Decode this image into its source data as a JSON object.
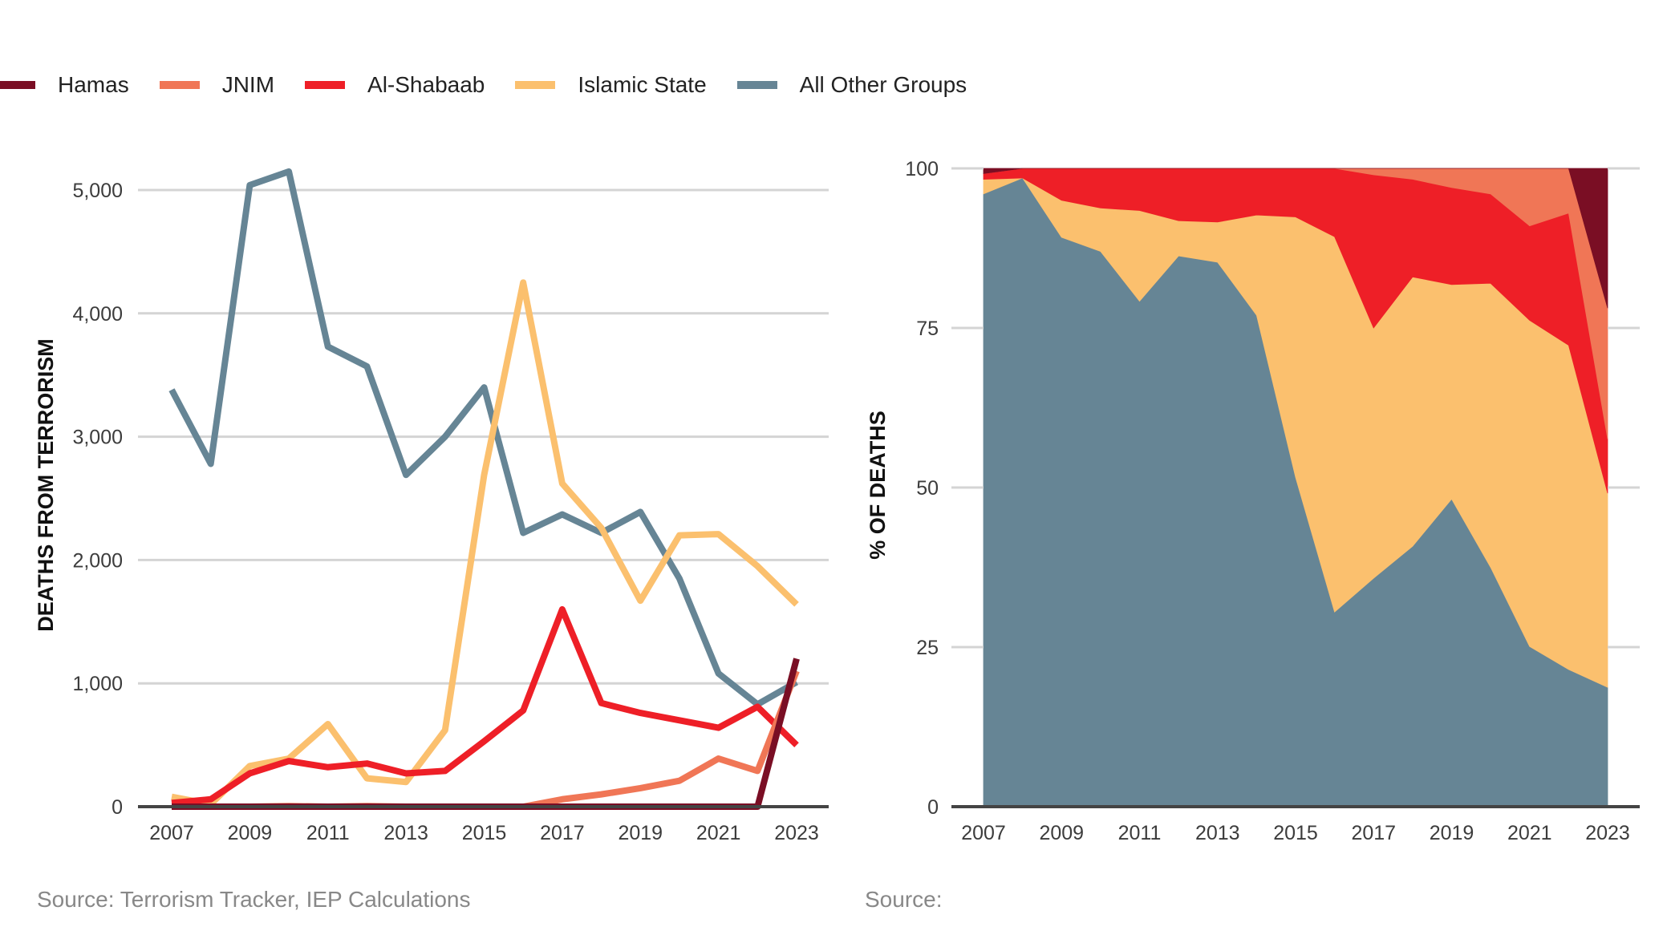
{
  "legend": [
    {
      "name": "Hamas",
      "color": "#7a0e24"
    },
    {
      "name": "JNIM",
      "color": "#f07656"
    },
    {
      "name": "Al-Shabaab",
      "color": "#ee1f27"
    },
    {
      "name": "Islamic State",
      "color": "#fbc06e"
    },
    {
      "name": "All Other Groups",
      "color": "#668595"
    }
  ],
  "chart_data": [
    {
      "type": "line",
      "title": "",
      "xlabel": "",
      "ylabel": "DEATHS FROM TERRORISM",
      "x": [
        2007,
        2008,
        2009,
        2010,
        2011,
        2012,
        2013,
        2014,
        2015,
        2016,
        2017,
        2018,
        2019,
        2020,
        2021,
        2022,
        2023
      ],
      "x_tick_labels": [
        "2007",
        "2009",
        "2011",
        "2013",
        "2015",
        "2017",
        "2019",
        "2021",
        "2023"
      ],
      "y_tick_labels": [
        "0",
        "1,000",
        "2,000",
        "3,000",
        "4,000",
        "5,000"
      ],
      "ylim": [
        0,
        5150
      ],
      "grid": true,
      "legend": "top-left",
      "series": [
        {
          "name": "All Other Groups",
          "color": "#668595",
          "values": [
            3380,
            2780,
            5040,
            5150,
            3730,
            3570,
            2690,
            3000,
            3400,
            2220,
            2370,
            2220,
            2390,
            1850,
            1080,
            830,
            1010
          ]
        },
        {
          "name": "Islamic State",
          "color": "#fbc06e",
          "values": [
            80,
            20,
            330,
            390,
            670,
            230,
            200,
            620,
            2690,
            4250,
            2620,
            2260,
            1670,
            2200,
            2210,
            1950,
            1640
          ]
        },
        {
          "name": "Al-Shabaab",
          "color": "#ee1f27",
          "values": [
            30,
            60,
            270,
            370,
            320,
            350,
            270,
            290,
            530,
            780,
            1600,
            840,
            760,
            700,
            640,
            810,
            500
          ]
        },
        {
          "name": "JNIM",
          "color": "#f07656",
          "values": [
            0,
            0,
            0,
            5,
            0,
            5,
            0,
            0,
            0,
            0,
            60,
            100,
            150,
            210,
            390,
            290,
            1100
          ]
        },
        {
          "name": "Hamas",
          "color": "#7a0e24",
          "values": [
            0,
            0,
            0,
            0,
            0,
            0,
            0,
            0,
            0,
            0,
            0,
            0,
            0,
            0,
            0,
            0,
            1200
          ]
        }
      ],
      "source": "Source: Terrorism Tracker, IEP Calculations"
    },
    {
      "type": "area",
      "stacked": true,
      "title": "",
      "xlabel": "",
      "ylabel": "% OF DEATHS",
      "x": [
        2007,
        2008,
        2009,
        2010,
        2011,
        2012,
        2013,
        2014,
        2015,
        2016,
        2017,
        2018,
        2019,
        2020,
        2021,
        2022,
        2023
      ],
      "x_tick_labels": [
        "2007",
        "2009",
        "2011",
        "2013",
        "2015",
        "2017",
        "2019",
        "2021",
        "2023"
      ],
      "y_tick_labels": [
        "0",
        "25",
        "50",
        "75",
        "100"
      ],
      "ylim": [
        0,
        100
      ],
      "grid": true,
      "series": [
        {
          "name": "All Other Groups",
          "color": "#668595",
          "values": [
            96,
            98.5,
            89.2,
            87,
            79.2,
            86.3,
            85.3,
            77,
            51.6,
            30.5,
            35.8,
            40.8,
            48.2,
            37.5,
            25.1,
            21.5,
            18.7
          ]
        },
        {
          "name": "Islamic State",
          "color": "#fbc06e",
          "values": [
            2.3,
            0,
            5.8,
            6.8,
            14.2,
            5.5,
            6.3,
            15.7,
            40.8,
            58.8,
            39.2,
            42.2,
            33.6,
            44.5,
            51.1,
            50.8,
            30.4
          ]
        },
        {
          "name": "Al-Shabaab",
          "color": "#ee1f27",
          "values": [
            0.9,
            1.5,
            5,
            6.2,
            6.6,
            8.2,
            8.4,
            7.3,
            7.6,
            10.7,
            24,
            15.3,
            15.2,
            14,
            14.8,
            20.7,
            8.5
          ]
        },
        {
          "name": "JNIM",
          "color": "#f07656",
          "values": [
            0,
            0,
            0,
            0,
            0,
            0,
            0,
            0,
            0,
            0,
            1,
            1.7,
            3,
            4,
            9,
            7,
            20.5
          ]
        },
        {
          "name": "Hamas",
          "color": "#7a0e24",
          "values": [
            0.8,
            0,
            0,
            0,
            0,
            0,
            0,
            0,
            0,
            0,
            0,
            0,
            0,
            0,
            0,
            0,
            21.9
          ]
        }
      ],
      "source": "Source:"
    }
  ]
}
